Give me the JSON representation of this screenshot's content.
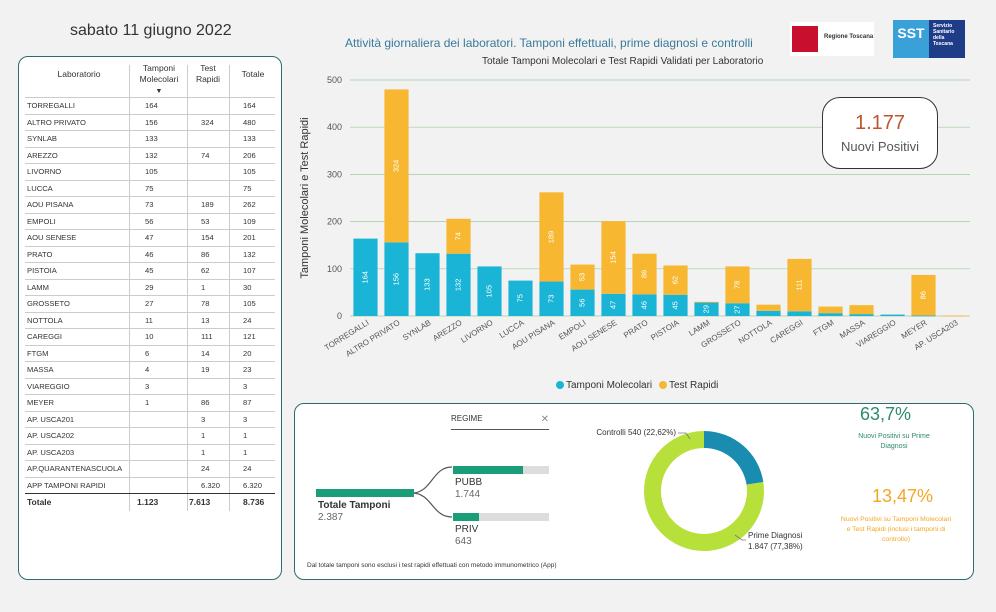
{
  "date": "sabato 11 giugno 2022",
  "subtitle": "Attività giornaliera dei laboratori. Tamponi effettuali, prime diagnosi e controlli",
  "logos": {
    "regione": "Regione Toscana",
    "sst_abbr": "SST",
    "sst": "Servizio Sanitario della Toscana"
  },
  "table": {
    "headers": [
      "Laboratorio",
      "Tamponi Molecolari",
      "Test Rapidi",
      "Totale"
    ],
    "rows": [
      [
        "TORREGALLI",
        "164",
        "",
        "164"
      ],
      [
        "ALTRO PRIVATO",
        "156",
        "324",
        "480"
      ],
      [
        "SYNLAB",
        "133",
        "",
        "133"
      ],
      [
        "AREZZO",
        "132",
        "74",
        "206"
      ],
      [
        "LIVORNO",
        "105",
        "",
        "105"
      ],
      [
        "LUCCA",
        "75",
        "",
        "75"
      ],
      [
        "AOU PISANA",
        "73",
        "189",
        "262"
      ],
      [
        "EMPOLI",
        "56",
        "53",
        "109"
      ],
      [
        "AOU SENESE",
        "47",
        "154",
        "201"
      ],
      [
        "PRATO",
        "46",
        "86",
        "132"
      ],
      [
        "PISTOIA",
        "45",
        "62",
        "107"
      ],
      [
        "LAMM",
        "29",
        "1",
        "30"
      ],
      [
        "GROSSETO",
        "27",
        "78",
        "105"
      ],
      [
        "NOTTOLA",
        "11",
        "13",
        "24"
      ],
      [
        "CAREGGI",
        "10",
        "111",
        "121"
      ],
      [
        "FTGM",
        "6",
        "14",
        "20"
      ],
      [
        "MASSA",
        "4",
        "19",
        "23"
      ],
      [
        "VIAREGGIO",
        "3",
        "",
        "3"
      ],
      [
        "MEYER",
        "1",
        "86",
        "87"
      ],
      [
        "AP. USCA201",
        "",
        "3",
        "3"
      ],
      [
        "AP. USCA202",
        "",
        "1",
        "1"
      ],
      [
        "AP. USCA203",
        "",
        "1",
        "1"
      ],
      [
        "AP.QUARANTENASCUOLA",
        "",
        "24",
        "24"
      ],
      [
        "APP TAMPONI RAPIDI",
        "",
        "6.320",
        "6.320"
      ]
    ],
    "total": [
      "Totale",
      "1.123",
      "7.613",
      "8.736"
    ]
  },
  "chart_data": {
    "type": "bar",
    "stacked": true,
    "title": "Totale Tamponi Molecolari e Test Rapidi Validati per Laboratorio",
    "xlabel": "",
    "ylabel": "Tamponi Molecolari e Test Rapidi",
    "ylim": [
      0,
      500
    ],
    "yticks": [
      0,
      100,
      200,
      300,
      400,
      500
    ],
    "categories": [
      "TORREGALLI",
      "ALTRO PRIVATO",
      "SYNLAB",
      "AREZZO",
      "LIVORNO",
      "LUCCA",
      "AOU PISANA",
      "EMPOLI",
      "AOU SENESE",
      "PRATO",
      "PISTOIA",
      "LAMM",
      "GROSSETO",
      "NOTTOLA",
      "CAREGGI",
      "FTGM",
      "MASSA",
      "VIAREGGIO",
      "MEYER",
      "AP. USCA203"
    ],
    "series": [
      {
        "name": "Tamponi Molecolari",
        "color": "#1ab4d6",
        "values": [
          164,
          156,
          133,
          132,
          105,
          75,
          73,
          56,
          47,
          46,
          45,
          29,
          27,
          11,
          10,
          6,
          4,
          3,
          1,
          0
        ]
      },
      {
        "name": "Test Rapidi",
        "color": "#f7b731",
        "values": [
          0,
          324,
          0,
          74,
          0,
          0,
          189,
          53,
          154,
          86,
          62,
          1,
          78,
          13,
          111,
          14,
          19,
          0,
          86,
          1
        ]
      }
    ],
    "label_min": 20,
    "grid": true,
    "legend": "bottom"
  },
  "nuovi_positivi": {
    "value": "1.177",
    "label": "Nuovi Positivi"
  },
  "regime": {
    "title": "REGIME",
    "total_label": "Totale Tamponi",
    "total_value": "2.387",
    "items": [
      {
        "label": "PUBB",
        "value": "1.744",
        "fraction": 0.731
      },
      {
        "label": "PRIV",
        "value": "643",
        "fraction": 0.269
      }
    ],
    "note": "Dal totale tamponi sono esclusi i test rapidi effettuati con metodo immunometrico (App)"
  },
  "donut": {
    "slices": [
      {
        "name": "Controlli",
        "value": 540,
        "label": "Controlli 540 (22,62%)",
        "color": "#1a8cb0"
      },
      {
        "name": "Prime Diagnosi",
        "value": 1847,
        "label_line1": "Prime Diagnosi",
        "label_line2": "1.847 (77,38%)",
        "color": "#b8e03a"
      }
    ]
  },
  "kpis": {
    "pct1": "63,7%",
    "pct1_label": "Nuovi Positivi su Prime Diagnosi",
    "pct2": "13,47%",
    "pct2_label": "Nuovi Positivi su Tamponi Molecolari e Test Rapidi (inclusi i tamponi di controllo)"
  },
  "colors": {
    "accent": "#2e8b6b",
    "molecolari": "#1ab4d6",
    "rapidi": "#f7b731",
    "positivi": "#c0552d"
  }
}
